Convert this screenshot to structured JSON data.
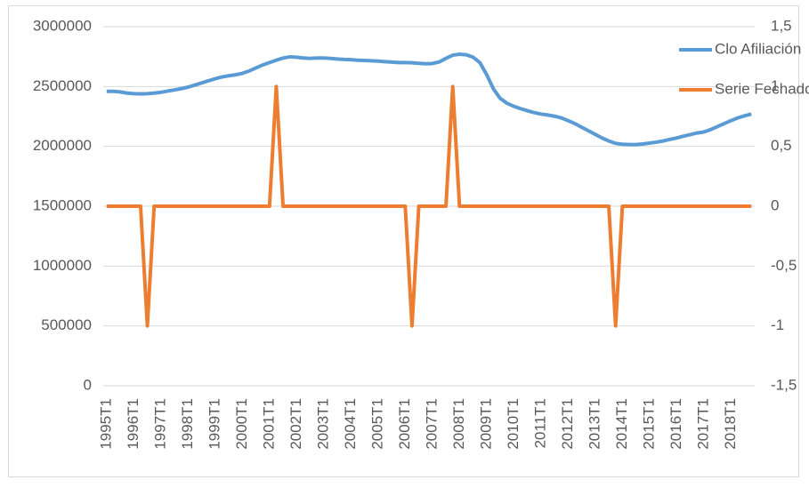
{
  "chart_data": {
    "type": "line",
    "categories": [
      "1995T1",
      null,
      null,
      null,
      "1996T1",
      null,
      null,
      null,
      "1997T1",
      null,
      null,
      null,
      "1998T1",
      null,
      null,
      null,
      "1999T1",
      null,
      null,
      null,
      "2000T1",
      null,
      null,
      null,
      "2001T1",
      null,
      null,
      null,
      "2002T1",
      null,
      null,
      null,
      "2003T1",
      null,
      null,
      null,
      "2004T1",
      null,
      null,
      null,
      "2005T1",
      null,
      null,
      null,
      "2006T1",
      null,
      null,
      null,
      "2007T1",
      null,
      null,
      null,
      "2008T1",
      null,
      null,
      null,
      "2009T1",
      null,
      null,
      null,
      "2010T1",
      null,
      null,
      null,
      "2011T1",
      null,
      null,
      null,
      "2012T1",
      null,
      null,
      null,
      "2013T1",
      null,
      null,
      null,
      "2014T1",
      null,
      null,
      null,
      "2015T1",
      null,
      null,
      null,
      "2016T1",
      null,
      null,
      null,
      "2017T1",
      null,
      null,
      null,
      "2018T1",
      null,
      null,
      null
    ],
    "series": [
      {
        "name": "Clo Afiliación",
        "color": "#5b9bd5",
        "axis": "y",
        "values": [
          2460000,
          2460000,
          2455000,
          2445000,
          2440000,
          2438000,
          2440000,
          2445000,
          2452000,
          2462000,
          2472000,
          2482000,
          2495000,
          2512000,
          2530000,
          2548000,
          2565000,
          2580000,
          2590000,
          2598000,
          2610000,
          2630000,
          2655000,
          2680000,
          2700000,
          2720000,
          2738000,
          2748000,
          2745000,
          2738000,
          2735000,
          2738000,
          2738000,
          2735000,
          2730000,
          2726000,
          2724000,
          2720000,
          2718000,
          2715000,
          2712000,
          2708000,
          2704000,
          2700000,
          2700000,
          2698000,
          2694000,
          2690000,
          2692000,
          2705000,
          2735000,
          2762000,
          2770000,
          2765000,
          2745000,
          2700000,
          2600000,
          2480000,
          2400000,
          2360000,
          2335000,
          2315000,
          2298000,
          2282000,
          2270000,
          2262000,
          2252000,
          2238000,
          2215000,
          2190000,
          2160000,
          2130000,
          2100000,
          2070000,
          2045000,
          2025000,
          2018000,
          2015000,
          2015000,
          2020000,
          2027000,
          2035000,
          2045000,
          2058000,
          2070000,
          2085000,
          2098000,
          2112000,
          2120000,
          2140000,
          2165000,
          2190000,
          2215000,
          2238000,
          2255000,
          2270000
        ]
      },
      {
        "name": "Serie Fechado",
        "color": "#ed7d31",
        "axis": "y2",
        "values": [
          0,
          0,
          0,
          0,
          0,
          0,
          -1,
          0,
          0,
          0,
          0,
          0,
          0,
          0,
          0,
          0,
          0,
          0,
          0,
          0,
          0,
          0,
          0,
          0,
          0,
          1,
          0,
          0,
          0,
          0,
          0,
          0,
          0,
          0,
          0,
          0,
          0,
          0,
          0,
          0,
          0,
          0,
          0,
          0,
          0,
          -1,
          0,
          0,
          0,
          0,
          0,
          1,
          0,
          0,
          0,
          0,
          0,
          0,
          0,
          0,
          0,
          0,
          0,
          0,
          0,
          0,
          0,
          0,
          0,
          0,
          0,
          0,
          0,
          0,
          0,
          -1,
          0,
          0,
          0,
          0,
          0,
          0,
          0,
          0,
          0,
          0,
          0,
          0,
          0,
          0,
          0,
          0,
          0,
          0,
          0,
          0
        ]
      }
    ],
    "ylim": [
      0,
      3000000
    ],
    "yticks": [
      0,
      500000,
      1000000,
      1500000,
      2000000,
      2500000,
      3000000
    ],
    "y2lim": [
      -1.5,
      1.5
    ],
    "y2ticks": [
      {
        "value": -1.5,
        "label": "-1,5"
      },
      -1,
      {
        "value": -0.5,
        "label": "-0,5"
      },
      0,
      {
        "value": 0.5,
        "label": "0,5"
      },
      1,
      {
        "value": 1.5,
        "label": "1,5"
      }
    ],
    "grid": true,
    "legend": "upper right"
  }
}
